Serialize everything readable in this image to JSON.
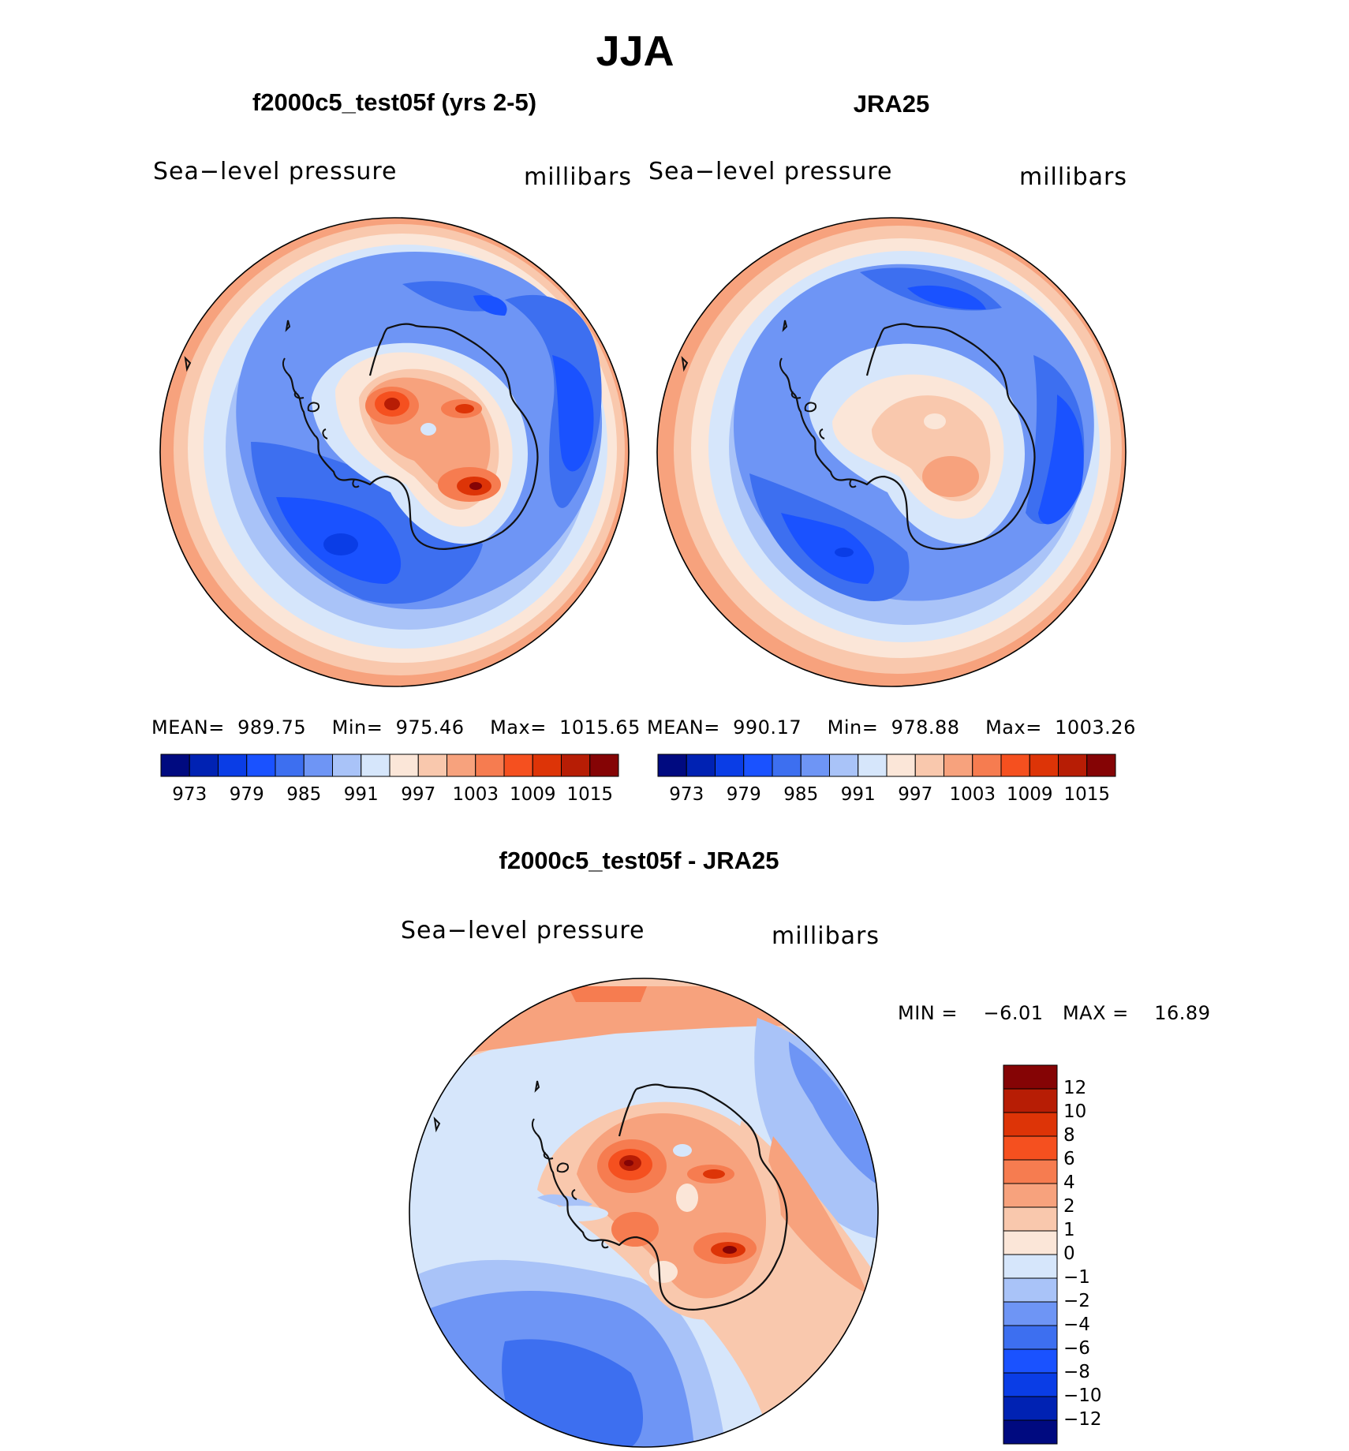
{
  "title": "JJA",
  "panels": [
    {
      "id": "model",
      "title": "f2000c5_test05f (yrs 2-5)",
      "variable": "Sea−level  pressure",
      "units": "millibars",
      "mean_label": "MEAN=",
      "mean": "989.75",
      "min_label": "Min=",
      "min": "975.46",
      "max_label": "Max=",
      "max": "1015.65"
    },
    {
      "id": "obs",
      "title": "JRA25",
      "variable": "Sea−level  pressure",
      "units": "millibars",
      "mean_label": "MEAN=",
      "mean": "990.17",
      "min_label": "Min=",
      "min": "978.88",
      "max_label": "Max=",
      "max": "1003.26"
    },
    {
      "id": "diff",
      "title": "f2000c5_test05f - JRA25",
      "variable": "Sea−level  pressure",
      "units": "millibars",
      "min_label": "MIN =",
      "min": "−6.01",
      "max_label": "MAX =",
      "max": "16.89"
    }
  ],
  "colors": {
    "scale": [
      "#000a80",
      "#0022b3",
      "#0a3de6",
      "#1a52ff",
      "#3d6ff0",
      "#6e95f5",
      "#a9c3f8",
      "#d6e6fb",
      "#fbe6d8",
      "#f9c8ad",
      "#f7a27d",
      "#f67c50",
      "#f5501f",
      "#dd3407",
      "#b71d05",
      "#850405"
    ],
    "coast": "#111111"
  },
  "chart_data": [
    {
      "type": "heatmap",
      "name": "model",
      "title": "f2000c5_test05f (yrs 2-5)",
      "projection": "south-polar-stereographic",
      "field": "Sea-level pressure (millibars)",
      "colorbar_ticks": [
        "973",
        "979",
        "985",
        "991",
        "997",
        "1003",
        "1009",
        "1015"
      ],
      "stats": {
        "mean": 989.75,
        "min": 975.46,
        "max": 1015.65
      }
    },
    {
      "type": "heatmap",
      "name": "obs",
      "title": "JRA25",
      "projection": "south-polar-stereographic",
      "field": "Sea-level pressure (millibars)",
      "colorbar_ticks": [
        "973",
        "979",
        "985",
        "991",
        "997",
        "1003",
        "1009",
        "1015"
      ],
      "stats": {
        "mean": 990.17,
        "min": 978.88,
        "max": 1003.26
      }
    },
    {
      "type": "heatmap",
      "name": "diff",
      "title": "f2000c5_test05f - JRA25",
      "projection": "south-polar-stereographic",
      "field": "Sea-level pressure difference (millibars)",
      "colorbar_ticks": [
        "12",
        "10",
        "8",
        "6",
        "4",
        "2",
        "1",
        "0",
        "−1",
        "−2",
        "−4",
        "−6",
        "−8",
        "−10",
        "−12"
      ],
      "stats": {
        "min": -6.01,
        "max": 16.89
      }
    }
  ]
}
